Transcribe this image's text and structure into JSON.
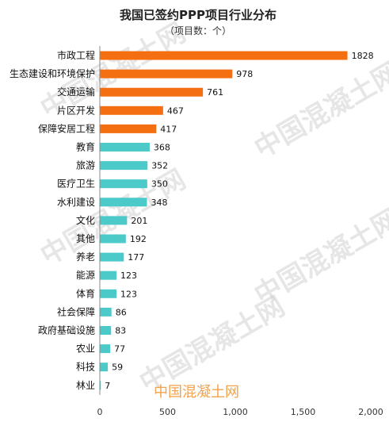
{
  "chart_data": {
    "type": "bar",
    "orientation": "horizontal",
    "title": "我国已签约PPP项目行业分布",
    "subtitle": "（项目数：个）",
    "categories": [
      "市政工程",
      "生态建设和环境保护",
      "交通运输",
      "片区开发",
      "保障安居工程",
      "教育",
      "旅游",
      "医疗卫生",
      "水利建设",
      "文化",
      "其他",
      "养老",
      "能源",
      "体育",
      "社会保障",
      "政府基础设施",
      "农业",
      "科技",
      "林业"
    ],
    "values": [
      1828,
      978,
      761,
      467,
      417,
      368,
      352,
      350,
      348,
      201,
      192,
      177,
      123,
      123,
      86,
      83,
      77,
      59,
      7
    ],
    "highlight_count": 5,
    "colors": {
      "highlight": "#f36f12",
      "normal": "#4cc9c9"
    },
    "xlim": [
      0,
      2000
    ],
    "x_ticks": [
      0,
      500,
      1000,
      1500,
      2000
    ],
    "x_tick_labels": [
      "0",
      "500",
      "1,000",
      "1,500",
      "2,000"
    ],
    "grid": false,
    "legend": "none"
  },
  "watermark": {
    "diagonal_text": "中国混凝土网",
    "brand_text": "中国混凝土网"
  }
}
